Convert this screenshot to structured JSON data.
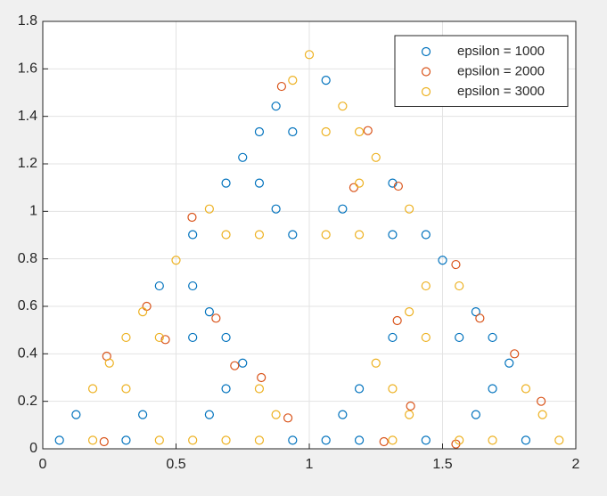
{
  "chart_data": {
    "type": "scatter",
    "xlim": [
      0,
      2
    ],
    "ylim": [
      0,
      1.8
    ],
    "xticks": [
      0,
      0.5,
      1,
      1.5,
      2
    ],
    "yticks": [
      0,
      0.2,
      0.4,
      0.6,
      0.8,
      1,
      1.2,
      1.4,
      1.6,
      1.8
    ],
    "grid": true,
    "legend": "northeast",
    "series": [
      {
        "name": "epsilon = 1000",
        "color": "#0072bd",
        "x": [
          0.0625,
          0.125,
          0.3125,
          0.375,
          0.625,
          0.9375,
          0.6875,
          0.75,
          0.5625,
          0.6875,
          0.625,
          0.4375,
          0.5625,
          1.0625,
          1.1875,
          1.125,
          1.4375,
          1.1875,
          1.625,
          1.8125,
          1.6875,
          1.75,
          1.3125,
          1.5625,
          1.6875,
          1.625,
          1.5,
          0.5625,
          0.9375,
          0.875,
          0.6875,
          0.8125,
          0.75,
          1.125,
          1.3125,
          1.4375,
          1.3125,
          0.8125,
          0.9375,
          0.875,
          1.0625
        ],
        "values": [
          0.036,
          0.144,
          0.036,
          0.144,
          0.144,
          0.036,
          0.253,
          0.361,
          0.469,
          0.469,
          0.577,
          0.686,
          0.686,
          0.036,
          0.036,
          0.144,
          0.036,
          0.253,
          0.144,
          0.036,
          0.253,
          0.361,
          0.469,
          0.469,
          0.469,
          0.577,
          0.794,
          0.902,
          0.902,
          1.01,
          1.119,
          1.119,
          1.227,
          1.01,
          0.902,
          0.902,
          1.119,
          1.335,
          1.335,
          1.443,
          1.552
        ]
      },
      {
        "name": "epsilon = 2000",
        "color": "#d95319",
        "x": [
          0.896,
          1.22,
          1.167,
          1.334,
          0.56,
          1.55,
          0.39,
          0.46,
          0.65,
          1.33,
          1.64,
          0.24,
          0.72,
          0.82,
          0.92,
          0.23,
          1.28,
          1.55,
          1.77,
          1.87,
          1.38
        ],
        "values": [
          1.526,
          1.34,
          1.1,
          1.106,
          0.975,
          0.776,
          0.6,
          0.46,
          0.55,
          0.54,
          0.55,
          0.39,
          0.35,
          0.3,
          0.13,
          0.03,
          0.03,
          0.02,
          0.4,
          0.2,
          0.18
        ]
      },
      {
        "name": "epsilon = 3000",
        "color": "#edb120",
        "x": [
          0.1875,
          0.4375,
          0.1875,
          0.3125,
          0.25,
          0.5625,
          0.6875,
          0.8125,
          0.875,
          0.8125,
          0.3125,
          0.4375,
          0.375,
          0.5,
          1.3125,
          1.375,
          1.3125,
          1.25,
          1.5625,
          1.6875,
          1.9375,
          1.875,
          1.8125,
          1.4375,
          1.375,
          1.4375,
          1.5625,
          0.6875,
          0.625,
          0.8125,
          1.0625,
          1.1875,
          1.375,
          1.1875,
          1.25,
          1.0625,
          1.1875,
          1.125,
          0.9375,
          1
        ],
        "values": [
          0.036,
          0.036,
          0.253,
          0.253,
          0.361,
          0.036,
          0.036,
          0.036,
          0.144,
          0.253,
          0.469,
          0.469,
          0.577,
          0.794,
          0.036,
          0.144,
          0.253,
          0.361,
          0.036,
          0.036,
          0.036,
          0.144,
          0.253,
          0.469,
          0.577,
          0.686,
          0.686,
          0.902,
          1.01,
          0.902,
          0.902,
          0.902,
          1.01,
          1.119,
          1.227,
          1.335,
          1.335,
          1.443,
          1.552,
          1.66
        ]
      }
    ]
  }
}
